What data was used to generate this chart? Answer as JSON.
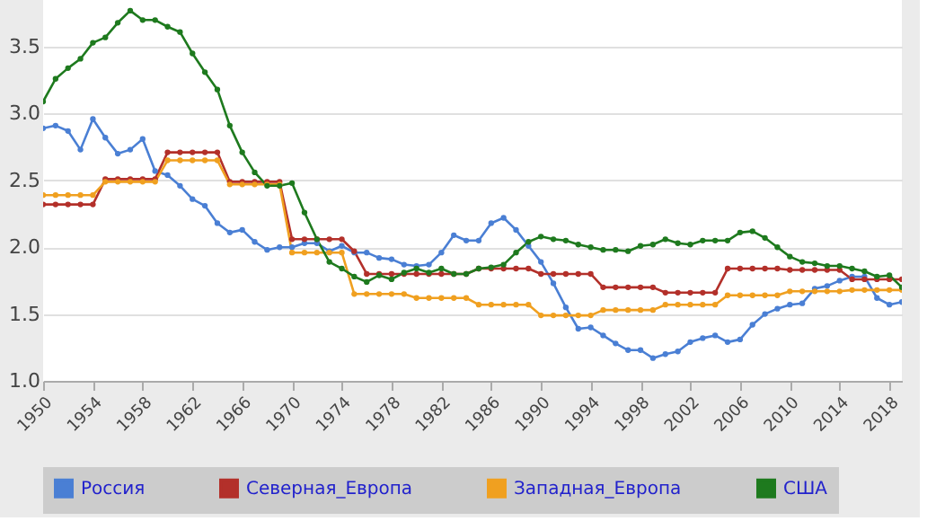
{
  "chart_data": {
    "type": "line",
    "x": [
      1950,
      1951,
      1952,
      1953,
      1954,
      1955,
      1956,
      1957,
      1958,
      1959,
      1960,
      1961,
      1962,
      1963,
      1964,
      1965,
      1966,
      1967,
      1968,
      1969,
      1970,
      1971,
      1972,
      1973,
      1974,
      1975,
      1976,
      1977,
      1978,
      1979,
      1980,
      1981,
      1982,
      1983,
      1984,
      1985,
      1986,
      1987,
      1988,
      1989,
      1990,
      1991,
      1992,
      1993,
      1994,
      1995,
      1996,
      1997,
      1998,
      1999,
      2000,
      2001,
      2002,
      2003,
      2004,
      2005,
      2006,
      2007,
      2008,
      2009,
      2010,
      2011,
      2012,
      2013,
      2014,
      2015,
      2016,
      2017,
      2018,
      2019
    ],
    "series": [
      {
        "name": "Россия",
        "color": "#4a7fd4",
        "values": [
          2.89,
          2.91,
          2.87,
          2.73,
          2.96,
          2.82,
          2.7,
          2.73,
          2.81,
          2.57,
          2.54,
          2.46,
          2.36,
          2.31,
          2.18,
          2.11,
          2.13,
          2.04,
          1.98,
          2.0,
          2.0,
          2.03,
          2.03,
          1.97,
          2.01,
          1.96,
          1.96,
          1.92,
          1.91,
          1.87,
          1.86,
          1.87,
          1.96,
          2.09,
          2.05,
          2.05,
          2.18,
          2.22,
          2.13,
          2.01,
          1.89,
          1.73,
          1.55,
          1.39,
          1.4,
          1.34,
          1.28,
          1.23,
          1.23,
          1.17,
          1.2,
          1.22,
          1.29,
          1.32,
          1.34,
          1.29,
          1.31,
          1.42,
          1.5,
          1.54,
          1.57,
          1.58,
          1.69,
          1.71,
          1.75,
          1.78,
          1.78,
          1.62,
          1.57,
          1.59
        ]
      },
      {
        "name": "Северная_Европа",
        "color": "#b3302a",
        "values": [
          2.32,
          2.32,
          2.32,
          2.32,
          2.32,
          2.51,
          2.51,
          2.51,
          2.51,
          2.51,
          2.71,
          2.71,
          2.71,
          2.71,
          2.71,
          2.49,
          2.49,
          2.49,
          2.49,
          2.49,
          2.06,
          2.06,
          2.06,
          2.06,
          2.06,
          1.97,
          1.8,
          1.8,
          1.8,
          1.8,
          1.8,
          1.8,
          1.8,
          1.8,
          1.8,
          1.84,
          1.84,
          1.84,
          1.84,
          1.84,
          1.8,
          1.8,
          1.8,
          1.8,
          1.8,
          1.7,
          1.7,
          1.7,
          1.7,
          1.7,
          1.66,
          1.66,
          1.66,
          1.66,
          1.66,
          1.84,
          1.84,
          1.84,
          1.84,
          1.84,
          1.83,
          1.83,
          1.83,
          1.83,
          1.83,
          1.76,
          1.76,
          1.76,
          1.76,
          1.76
        ]
      },
      {
        "name": "Западная_Европа",
        "color": "#f0a020",
        "values": [
          2.39,
          2.39,
          2.39,
          2.39,
          2.39,
          2.49,
          2.49,
          2.49,
          2.49,
          2.49,
          2.65,
          2.65,
          2.65,
          2.65,
          2.65,
          2.47,
          2.47,
          2.47,
          2.47,
          2.47,
          1.96,
          1.96,
          1.96,
          1.96,
          1.96,
          1.65,
          1.65,
          1.65,
          1.65,
          1.65,
          1.62,
          1.62,
          1.62,
          1.62,
          1.62,
          1.57,
          1.57,
          1.57,
          1.57,
          1.57,
          1.49,
          1.49,
          1.49,
          1.49,
          1.49,
          1.53,
          1.53,
          1.53,
          1.53,
          1.53,
          1.57,
          1.57,
          1.57,
          1.57,
          1.57,
          1.64,
          1.64,
          1.64,
          1.64,
          1.64,
          1.67,
          1.67,
          1.67,
          1.67,
          1.67,
          1.68,
          1.68,
          1.68,
          1.68,
          1.68
        ]
      },
      {
        "name": "США",
        "color": "#1e7a1e",
        "values": [
          3.09,
          3.26,
          3.34,
          3.41,
          3.53,
          3.57,
          3.68,
          3.77,
          3.7,
          3.7,
          3.65,
          3.61,
          3.45,
          3.31,
          3.18,
          2.91,
          2.71,
          2.56,
          2.46,
          2.46,
          2.48,
          2.26,
          2.06,
          1.89,
          1.84,
          1.78,
          1.74,
          1.79,
          1.76,
          1.81,
          1.84,
          1.81,
          1.84,
          1.8,
          1.8,
          1.84,
          1.85,
          1.87,
          1.96,
          2.04,
          2.08,
          2.06,
          2.05,
          2.02,
          2.0,
          1.98,
          1.98,
          1.97,
          2.01,
          2.02,
          2.06,
          2.03,
          2.02,
          2.05,
          2.05,
          2.05,
          2.11,
          2.12,
          2.07,
          2.0,
          1.93,
          1.89,
          1.88,
          1.86,
          1.86,
          1.84,
          1.82,
          1.78,
          1.79,
          1.7
        ]
      }
    ],
    "xlim": [
      1950,
      2019
    ],
    "xticks": [
      1950,
      1954,
      1958,
      1962,
      1966,
      1970,
      1974,
      1978,
      1982,
      1986,
      1990,
      1994,
      1998,
      2002,
      2006,
      2010,
      2014,
      2018
    ],
    "ylim": [
      1.0,
      3.85
    ],
    "yticks": [
      {
        "value": 1.0,
        "label": "1.0"
      },
      {
        "value": 1.5,
        "label": "1.5"
      },
      {
        "value": 2.0,
        "label": "2.0"
      },
      {
        "value": 2.5,
        "label": "2.5"
      },
      {
        "value": 3.0,
        "label": "3.0"
      },
      {
        "value": 3.5,
        "label": "3.5"
      }
    ],
    "grid": "y",
    "legend": "bottom",
    "marker": "circle",
    "line_style": "solid"
  }
}
